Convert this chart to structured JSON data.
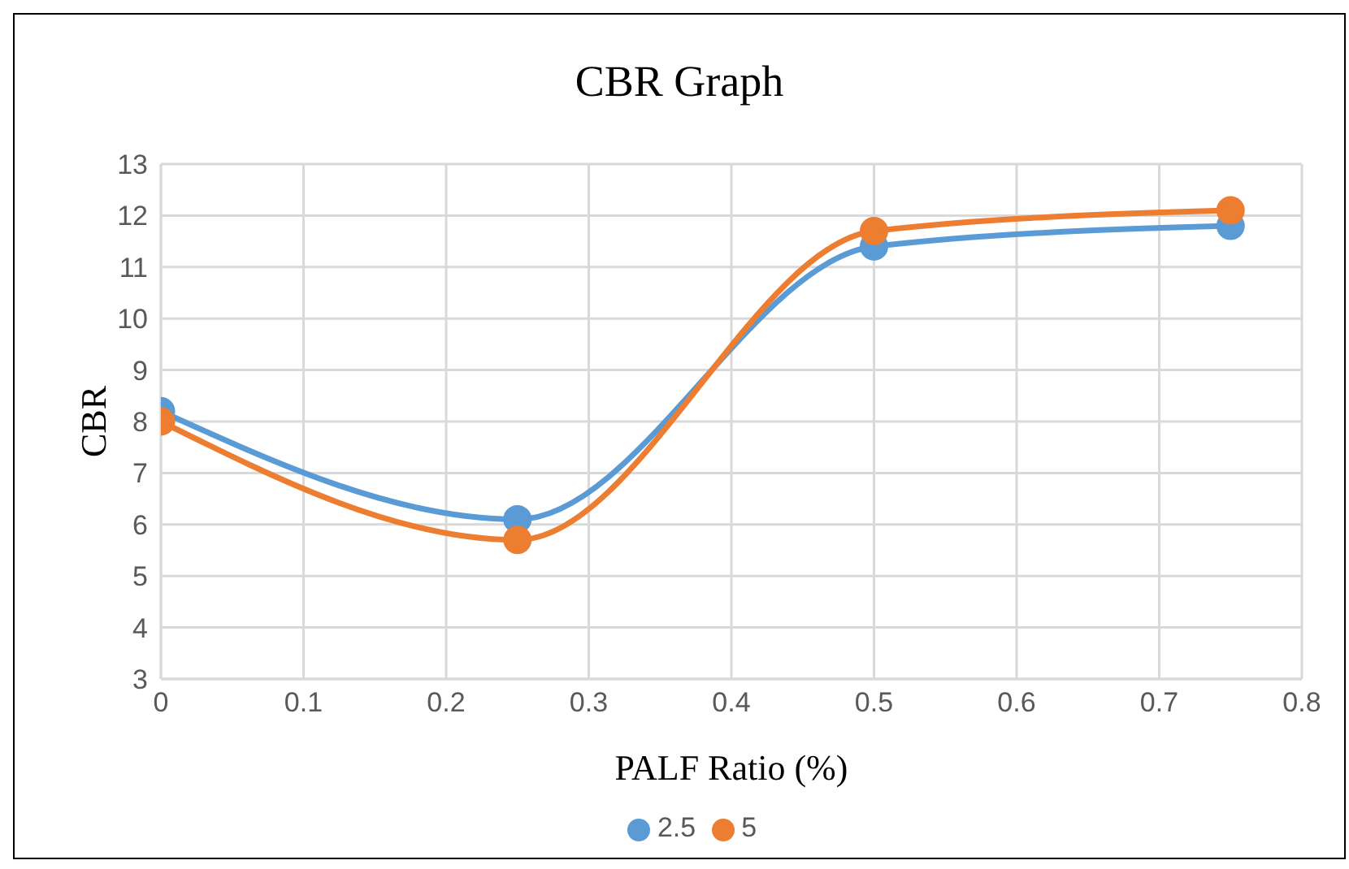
{
  "chart_data": {
    "type": "line",
    "title": "CBR Graph",
    "xlabel": "PALF Ratio (%)",
    "ylabel": "CBR",
    "x": [
      0,
      0.25,
      0.5,
      0.75
    ],
    "series": [
      {
        "name": "2.5",
        "color": "#5b9bd5",
        "values": [
          8.2,
          6.1,
          11.4,
          11.8
        ]
      },
      {
        "name": "5",
        "color": "#ed7d31",
        "values": [
          8.0,
          5.7,
          11.7,
          12.1
        ]
      }
    ],
    "xlim": [
      0,
      0.8
    ],
    "xticks": [
      0,
      0.1,
      0.2,
      0.3,
      0.4,
      0.5,
      0.6,
      0.7,
      0.8
    ],
    "ylim": [
      3,
      13
    ],
    "yticks": [
      3,
      4,
      5,
      6,
      7,
      8,
      9,
      10,
      11,
      12,
      13
    ],
    "grid": true,
    "legend": "bottom",
    "marker": "circle",
    "line_style": "solid"
  }
}
